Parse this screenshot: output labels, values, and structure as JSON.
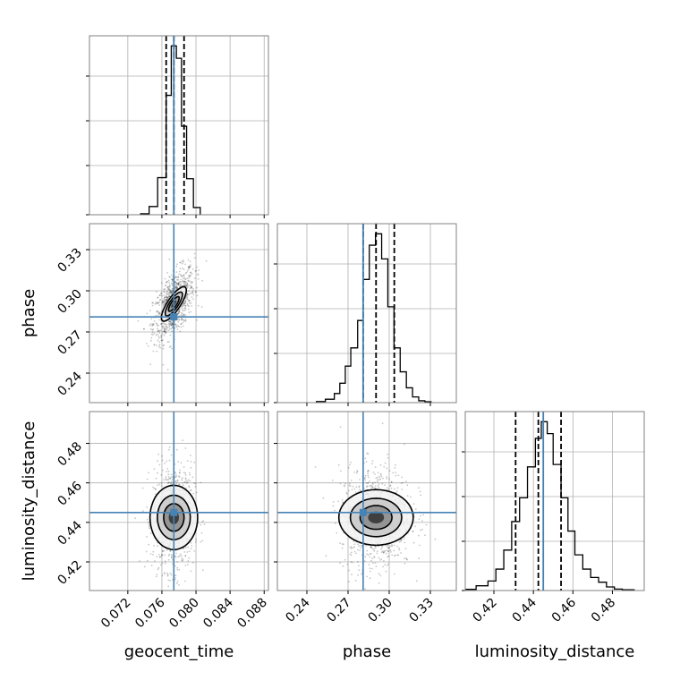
{
  "chart_data": {
    "type": "corner",
    "parameters": [
      "geocent_time",
      "phase",
      "luminosity_distance"
    ],
    "axis_labels": {
      "x": [
        "geocent_time",
        "phase",
        "luminosity_distance"
      ],
      "y": [
        "",
        "phase",
        "luminosity_distance"
      ]
    },
    "ranges": {
      "geocent_time": [
        0.0675,
        0.0885
      ],
      "phase": [
        0.2185,
        0.3489
      ],
      "luminosity_distance": [
        0.4055,
        0.4961
      ]
    },
    "ticks": {
      "geocent_time": [
        0.072,
        0.076,
        0.08,
        0.084,
        0.088
      ],
      "phase": [
        0.24,
        0.27,
        0.3,
        0.33
      ],
      "luminosity_distance": [
        0.42,
        0.44,
        0.46,
        0.48
      ]
    },
    "tick_labels": {
      "geocent_time": [
        "0.072",
        "0.076",
        "0.080",
        "0.084",
        "0.088"
      ],
      "phase": [
        "0.24",
        "0.27",
        "0.30",
        "0.33"
      ],
      "luminosity_distance": [
        "0.42",
        "0.44",
        "0.46",
        "0.48"
      ]
    },
    "truths": {
      "geocent_time": 0.0774,
      "phase": 0.281,
      "luminosity_distance": 0.445
    },
    "quantiles": {
      "geocent_time": [
        0.0765,
        0.0774,
        0.0786
      ],
      "phase": [
        0.281,
        0.2904,
        0.3037
      ],
      "luminosity_distance": [
        0.431,
        0.4425,
        0.454
      ]
    },
    "histograms": {
      "geocent_time": {
        "edges": [
          0.0735,
          0.0745,
          0.0755,
          0.0765,
          0.0771,
          0.0777,
          0.0783,
          0.0789,
          0.0797,
          0.0805
        ],
        "counts": [
          5,
          40,
          180,
          580,
          820,
          760,
          430,
          175,
          35
        ]
      },
      "phase": {
        "edges": [
          0.247,
          0.2535,
          0.26,
          0.264,
          0.268,
          0.272,
          0.277,
          0.281,
          0.2855,
          0.29,
          0.2945,
          0.299,
          0.3035,
          0.308,
          0.3125,
          0.317,
          0.3215,
          0.326,
          0.3305
        ],
        "counts": [
          5,
          15,
          40,
          85,
          160,
          240,
          360,
          540,
          690,
          740,
          630,
          420,
          240,
          135,
          65,
          25,
          8,
          4
        ]
      },
      "luminosity_distance": {
        "edges": [
          0.4055,
          0.411,
          0.417,
          0.421,
          0.425,
          0.429,
          0.433,
          0.437,
          0.441,
          0.444,
          0.447,
          0.45,
          0.454,
          0.4575,
          0.461,
          0.465,
          0.469,
          0.473,
          0.477,
          0.481,
          0.485,
          0.491
        ],
        "counts": [
          5,
          20,
          40,
          90,
          170,
          290,
          390,
          520,
          640,
          710,
          660,
          530,
          390,
          250,
          150,
          90,
          55,
          35,
          15,
          6,
          3
        ]
      }
    },
    "colors": {
      "truth": "#4682b4",
      "contour": "#000000",
      "grid": "#b0b0b0",
      "points": "#000000"
    },
    "grid": true,
    "contour_levels": 3
  }
}
